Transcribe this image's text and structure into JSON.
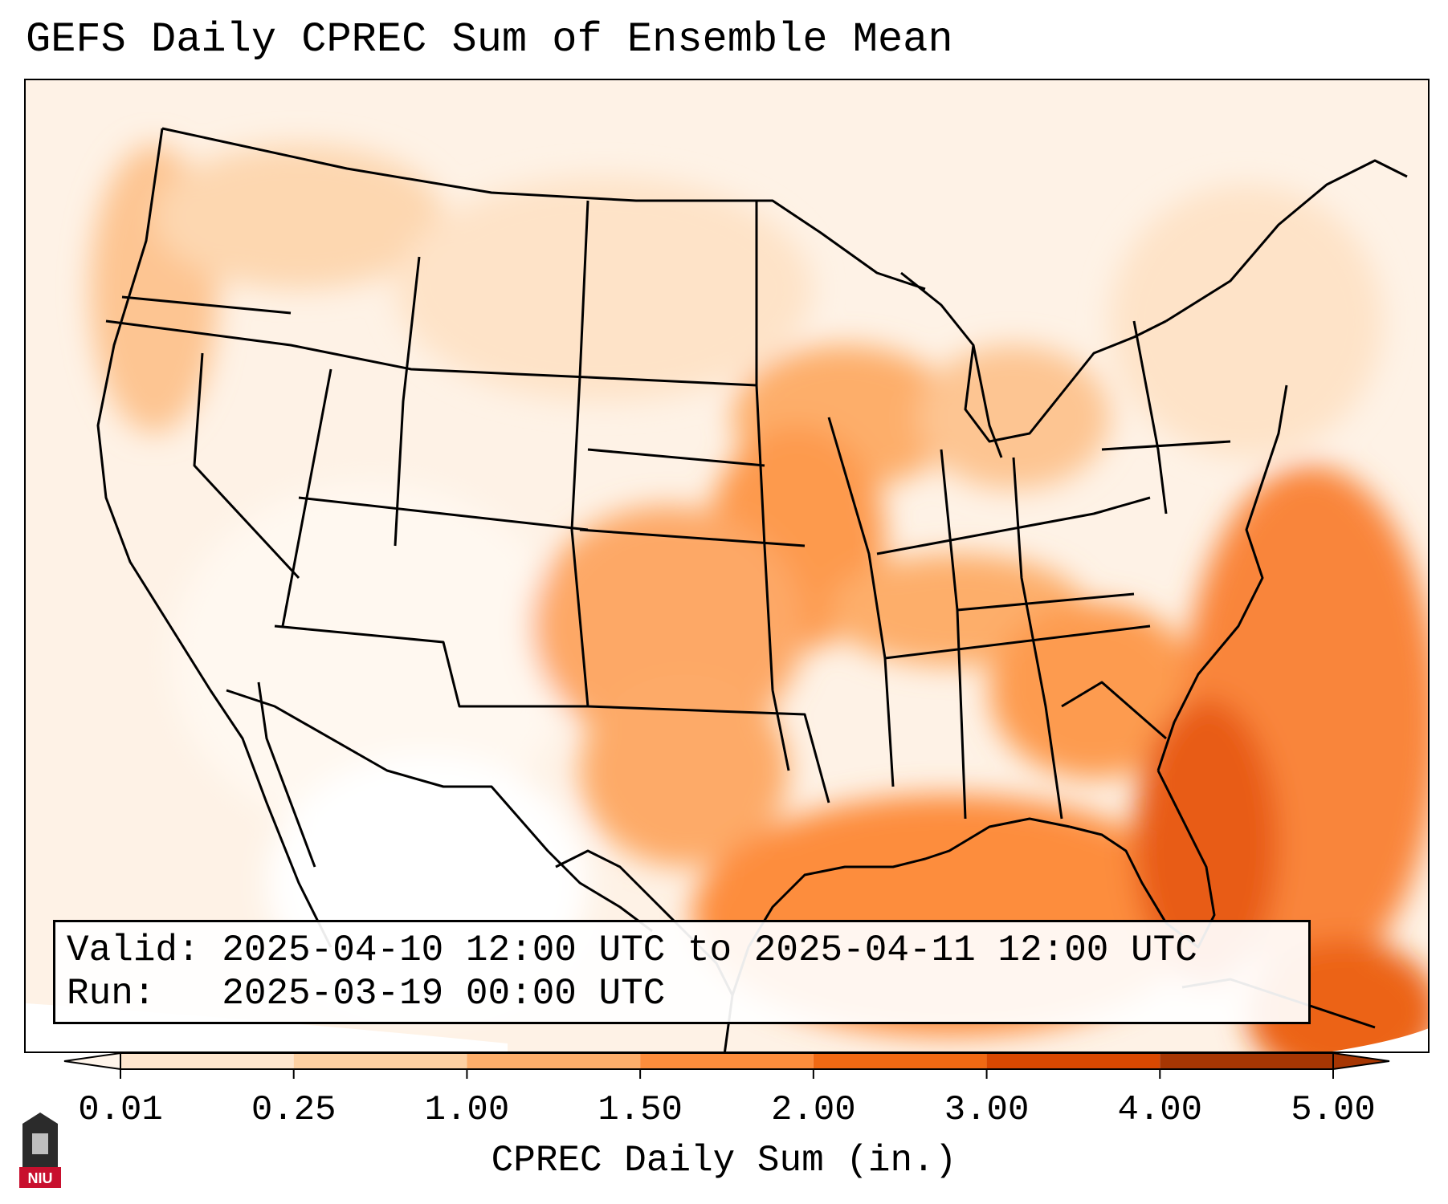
{
  "title": "GEFS Daily CPREC Sum of Ensemble Mean",
  "info": {
    "valid_line": "Valid: 2025-04-10 12:00 UTC to 2025-04-11 12:00 UTC",
    "run_line": "Run:   2025-03-19 00:00 UTC"
  },
  "colorbar": {
    "label": "CPREC Daily Sum (in.)",
    "ticks": [
      "0.01",
      "0.25",
      "1.00",
      "1.50",
      "2.00",
      "3.00",
      "4.00",
      "5.00"
    ],
    "colors": [
      "#fff5eb",
      "#fee6ce",
      "#fdd0a2",
      "#fdae6b",
      "#fd8d3c",
      "#f16913",
      "#d94801",
      "#a63603"
    ]
  },
  "logo": {
    "text": "NIU"
  }
}
